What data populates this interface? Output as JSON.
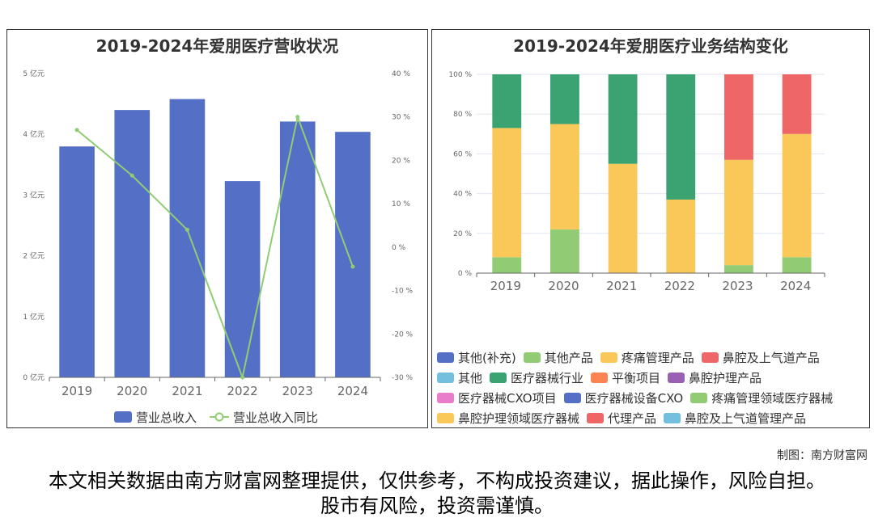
{
  "credit": "制图：南方财富网",
  "disclaimer": "本文相关数据由南方财富网整理提供，仅供参考，不构成投资建议，据此操作，风险自担。股市有风险，投资需谨慎。",
  "chart_data": [
    {
      "type": "bar",
      "title": "2019-2024年爱朋医疗营收状况",
      "categories": [
        "2019",
        "2020",
        "2021",
        "2022",
        "2023",
        "2024"
      ],
      "y_axis_left": {
        "ticks": [
          "0 亿元",
          "1 亿元",
          "2 亿元",
          "3 亿元",
          "4 亿元",
          "5 亿元"
        ],
        "ylim": [
          0,
          5
        ]
      },
      "y_axis_right": {
        "ticks": [
          "-30 %",
          "-20 %",
          "-10 %",
          "0 %",
          "10 %",
          "20 %",
          "30 %",
          "40 %"
        ],
        "ylim": [
          -30,
          40
        ]
      },
      "series": [
        {
          "name": "营业总收入",
          "type": "bar",
          "axis": "left",
          "color": "#5470c6",
          "values": [
            3.8,
            4.4,
            4.58,
            3.23,
            4.21,
            4.04
          ]
        },
        {
          "name": "营业总收入同比",
          "type": "line",
          "axis": "right",
          "color": "#91cc75",
          "values": [
            27.0,
            16.5,
            4.0,
            -30.0,
            30.0,
            -4.5
          ]
        }
      ],
      "grid": false
    },
    {
      "type": "bar",
      "stacked": true,
      "title": "2019-2024年爱朋医疗业务结构变化",
      "categories": [
        "2019",
        "2020",
        "2021",
        "2022",
        "2023",
        "2024"
      ],
      "y_axis": {
        "ticks": [
          "0 %",
          "20 %",
          "40 %",
          "60 %",
          "80 %",
          "100 %"
        ],
        "ylim": [
          0,
          100
        ]
      },
      "legend_items": [
        {
          "name": "其他(补充)",
          "color": "#5470c6"
        },
        {
          "name": "其他产品",
          "color": "#91cc75"
        },
        {
          "name": "疼痛管理产品",
          "color": "#fac858"
        },
        {
          "name": "鼻腔及上气道产品",
          "color": "#ee6666"
        },
        {
          "name": "其他",
          "color": "#73c0de"
        },
        {
          "name": "医疗器械行业",
          "color": "#3ba272"
        },
        {
          "name": "平衡项目",
          "color": "#fc8452"
        },
        {
          "name": "鼻腔护理产品",
          "color": "#9a60b4"
        },
        {
          "name": "医疗器械CXO项目",
          "color": "#ea7ccc"
        },
        {
          "name": "医疗器械设备CXO",
          "color": "#5470c6"
        },
        {
          "name": "疼痛管理领域医疗器械",
          "color": "#91cc75"
        },
        {
          "name": "鼻腔护理领域医疗器械",
          "color": "#fac858"
        },
        {
          "name": "代理产品",
          "color": "#ee6666"
        },
        {
          "name": "鼻腔及上气道管理产品",
          "color": "#73c0de"
        }
      ],
      "series": [
        {
          "name": "其他产品",
          "color": "#91cc75",
          "values": [
            8,
            22,
            0,
            0,
            4,
            8
          ]
        },
        {
          "name": "疼痛管理产品",
          "color": "#fac858",
          "values": [
            65,
            53,
            55,
            37,
            53,
            62
          ]
        },
        {
          "name": "医疗器械行业",
          "color": "#3ba272",
          "values": [
            27,
            25,
            45,
            63,
            0,
            0
          ]
        },
        {
          "name": "鼻腔及上气道产品",
          "color": "#ee6666",
          "values": [
            0,
            0,
            0,
            0,
            43,
            30
          ]
        }
      ],
      "grid": true
    }
  ]
}
